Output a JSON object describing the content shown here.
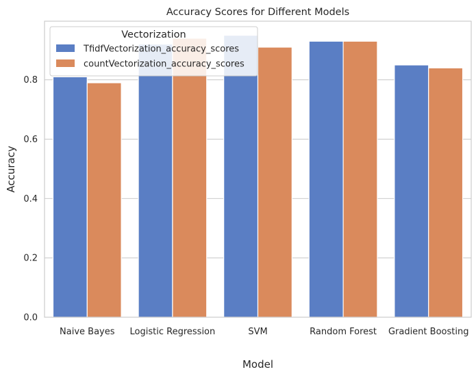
{
  "chart_data": {
    "type": "bar",
    "title": "Accuracy Scores for Different Models",
    "xlabel": "Model",
    "ylabel": "Accuracy",
    "categories": [
      "Naive Bayes",
      "Logistic Regression",
      "SVM",
      "Random Forest",
      "Gradient Boosting"
    ],
    "series": [
      {
        "name": "TfidfVectorization_accuracy_scores",
        "color": "#5a7ec4",
        "values": [
          0.81,
          0.92,
          0.95,
          0.93,
          0.85
        ]
      },
      {
        "name": "countVectorization_accuracy_scores",
        "color": "#da8a5c",
        "values": [
          0.79,
          0.94,
          0.91,
          0.93,
          0.84
        ]
      }
    ],
    "ylim": [
      0,
      0.9975
    ],
    "yticks": [
      0.0,
      0.2,
      0.4,
      0.6,
      0.8
    ],
    "ytick_labels": [
      "0.0",
      "0.2",
      "0.4",
      "0.6",
      "0.8"
    ],
    "grid": "horizontal",
    "legend": {
      "title": "Vectorization",
      "placement": "top-left"
    }
  }
}
